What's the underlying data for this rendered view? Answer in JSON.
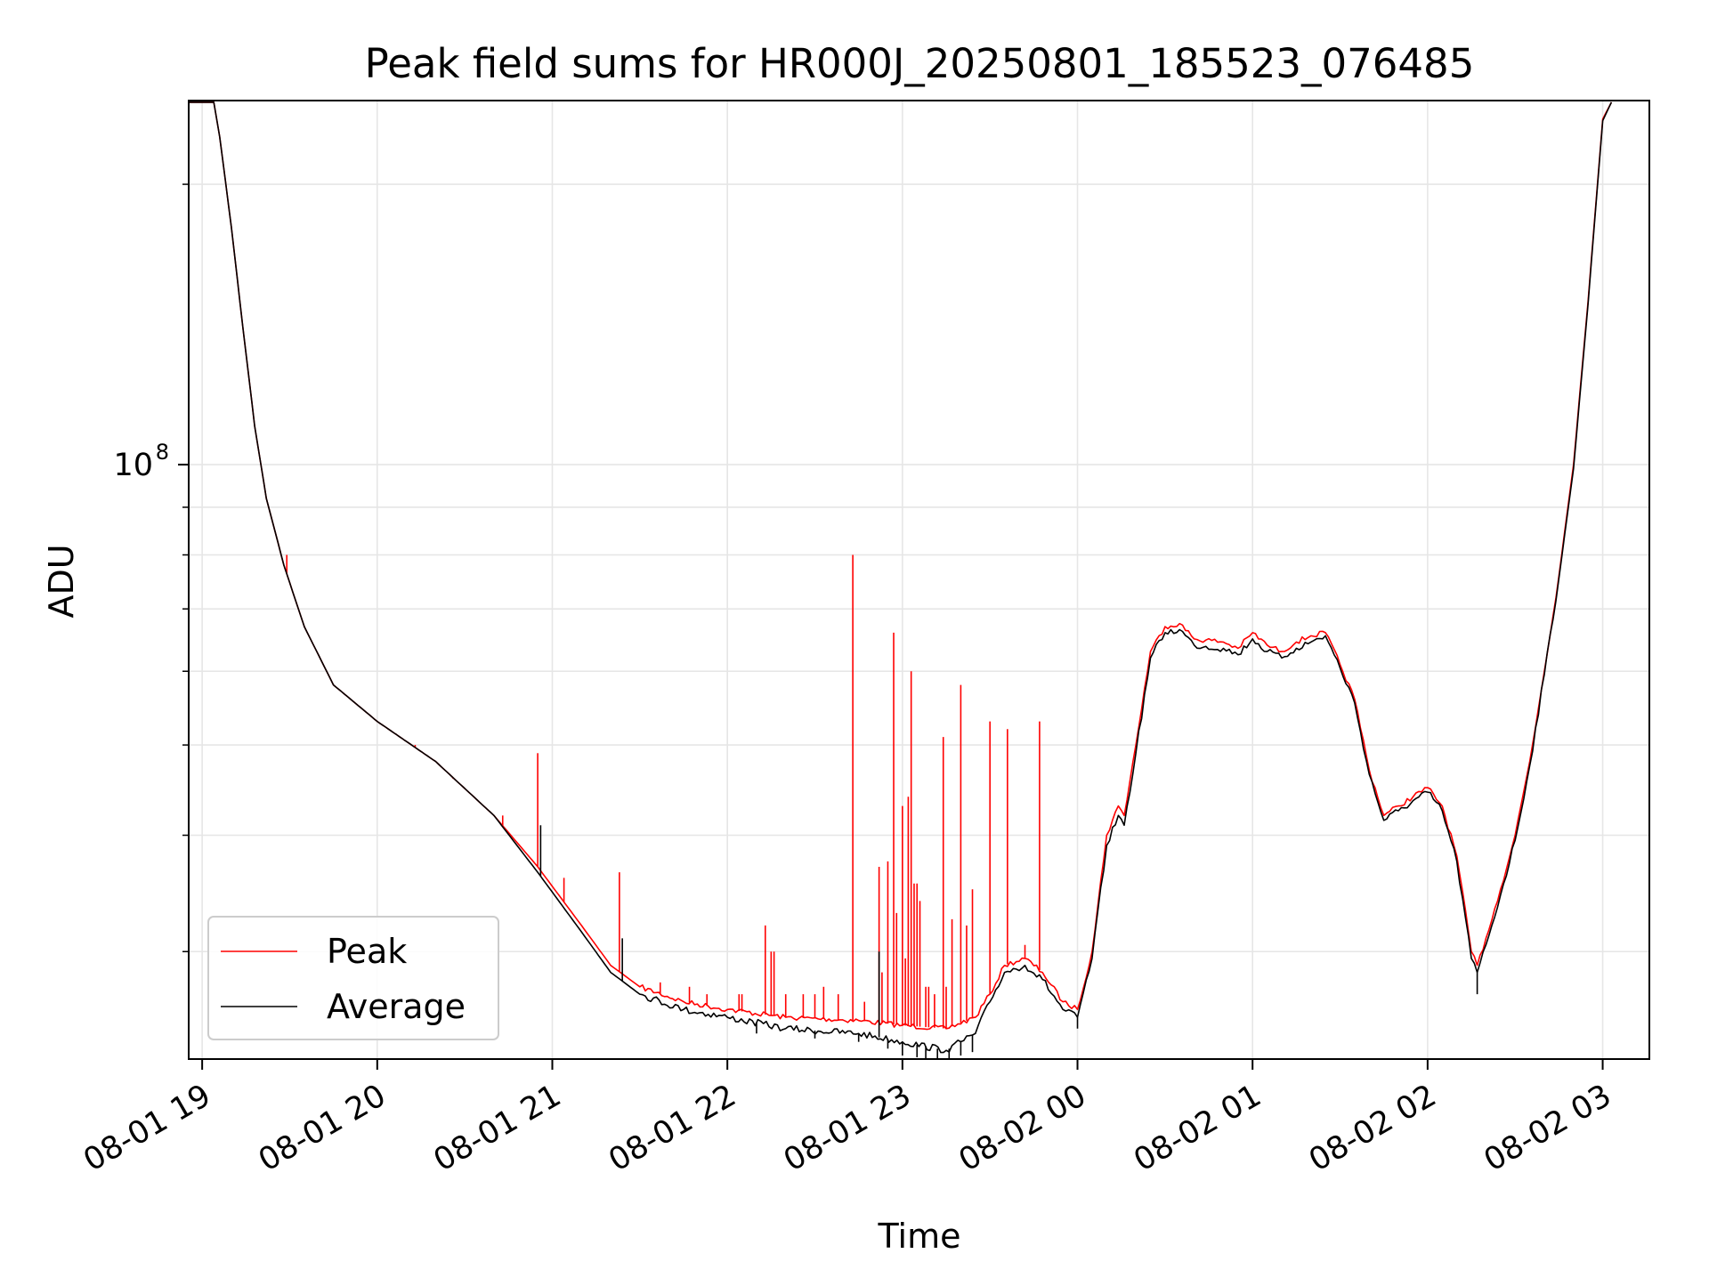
{
  "chart_data": {
    "type": "line",
    "title": "Peak field sums for HR000J_20250801_185523_076485",
    "xlabel": "Time",
    "ylabel": "ADU",
    "yscale": "log",
    "ylim": [
      23000000,
      246000000
    ],
    "xlim": [
      "2025-08-01 18:55:23",
      "2025-08-02 03:16:00"
    ],
    "x_ticks": [
      {
        "time": "2025-08-01 19:00",
        "label": "08-01 19"
      },
      {
        "time": "2025-08-01 20:00",
        "label": "08-01 20"
      },
      {
        "time": "2025-08-01 21:00",
        "label": "08-01 21"
      },
      {
        "time": "2025-08-01 22:00",
        "label": "08-01 22"
      },
      {
        "time": "2025-08-01 23:00",
        "label": "08-01 23"
      },
      {
        "time": "2025-08-02 00:00",
        "label": "08-02 00"
      },
      {
        "time": "2025-08-02 01:00",
        "label": "08-02 01"
      },
      {
        "time": "2025-08-02 02:00",
        "label": "08-02 02"
      },
      {
        "time": "2025-08-02 03:00",
        "label": "08-02 03"
      }
    ],
    "y_major_ticks": [
      {
        "value": 100000000,
        "label_base": "10",
        "label_exp": "8"
      }
    ],
    "y_minor_ticks": [
      30000000,
      40000000,
      50000000,
      60000000,
      70000000,
      80000000,
      90000000,
      200000000
    ],
    "grid": true,
    "legend_position": "lower-left",
    "series": [
      {
        "name": "Peak",
        "color": "#ff0000",
        "points": [
          [
            "2025-08-01 18:55:23",
            245000000
          ],
          [
            "2025-08-01 19:04:00",
            245000000
          ],
          [
            "2025-08-01 19:06:00",
            225000000
          ],
          [
            "2025-08-01 19:10:00",
            180000000
          ],
          [
            "2025-08-01 19:14:00",
            140000000
          ],
          [
            "2025-08-01 19:18:00",
            110000000
          ],
          [
            "2025-08-01 19:22:00",
            92000000
          ],
          [
            "2025-08-01 19:28:00",
            78000000
          ],
          [
            "2025-08-01 19:35:00",
            67000000
          ],
          [
            "2025-08-01 19:45:00",
            58000000
          ],
          [
            "2025-08-01 20:00:00",
            53000000
          ],
          [
            "2025-08-01 20:20:00",
            48000000
          ],
          [
            "2025-08-01 20:40:00",
            42000000
          ],
          [
            "2025-08-01 20:55:00",
            37000000
          ],
          [
            "2025-08-01 21:10:00",
            32000000
          ],
          [
            "2025-08-01 21:20:00",
            29000000
          ],
          [
            "2025-08-01 21:30:00",
            27500000
          ],
          [
            "2025-08-01 21:45:00",
            26500000
          ],
          [
            "2025-08-01 22:00:00",
            26000000
          ],
          [
            "2025-08-01 22:20:00",
            25500000
          ],
          [
            "2025-08-01 22:45:00",
            25300000
          ],
          [
            "2025-08-01 23:00:00",
            25000000
          ],
          [
            "2025-08-01 23:15:00",
            24800000
          ],
          [
            "2025-08-01 23:25:00",
            25500000
          ],
          [
            "2025-08-01 23:30:00",
            27000000
          ],
          [
            "2025-08-01 23:35:00",
            29000000
          ],
          [
            "2025-08-01 23:42:00",
            29500000
          ],
          [
            "2025-08-01 23:48:00",
            28500000
          ],
          [
            "2025-08-01 23:55:00",
            26500000
          ],
          [
            "2025-08-02 00:00:00",
            26000000
          ],
          [
            "2025-08-02 00:05:00",
            30000000
          ],
          [
            "2025-08-02 00:10:00",
            40000000
          ],
          [
            "2025-08-02 00:14:00",
            43000000
          ],
          [
            "2025-08-02 00:16:00",
            42000000
          ],
          [
            "2025-08-02 00:20:00",
            50000000
          ],
          [
            "2025-08-02 00:25:00",
            63000000
          ],
          [
            "2025-08-02 00:30:00",
            67000000
          ],
          [
            "2025-08-02 00:35:00",
            67500000
          ],
          [
            "2025-08-02 00:40:00",
            65000000
          ],
          [
            "2025-08-02 00:50:00",
            64500000
          ],
          [
            "2025-08-02 00:55:00",
            63500000
          ],
          [
            "2025-08-02 01:00:00",
            66000000
          ],
          [
            "2025-08-02 01:05:00",
            64000000
          ],
          [
            "2025-08-02 01:10:00",
            63000000
          ],
          [
            "2025-08-02 01:15:00",
            64500000
          ],
          [
            "2025-08-02 01:20:00",
            65500000
          ],
          [
            "2025-08-02 01:25:00",
            66000000
          ],
          [
            "2025-08-02 01:30:00",
            61000000
          ],
          [
            "2025-08-02 01:35:00",
            56000000
          ],
          [
            "2025-08-02 01:40:00",
            47000000
          ],
          [
            "2025-08-02 01:45:00",
            42000000
          ],
          [
            "2025-08-02 01:50:00",
            43000000
          ],
          [
            "2025-08-02 02:00:00",
            45000000
          ],
          [
            "2025-08-02 02:05:00",
            43000000
          ],
          [
            "2025-08-02 02:10:00",
            38000000
          ],
          [
            "2025-08-02 02:15:00",
            30000000
          ],
          [
            "2025-08-02 02:17:00",
            29000000
          ],
          [
            "2025-08-02 02:20:00",
            31000000
          ],
          [
            "2025-08-02 02:25:00",
            35000000
          ],
          [
            "2025-08-02 02:30:00",
            40000000
          ],
          [
            "2025-08-02 02:35:00",
            48000000
          ],
          [
            "2025-08-02 02:40:00",
            60000000
          ],
          [
            "2025-08-02 02:45:00",
            76000000
          ],
          [
            "2025-08-02 02:50:00",
            100000000
          ],
          [
            "2025-08-02 02:55:00",
            150000000
          ],
          [
            "2025-08-02 03:00:00",
            235000000
          ],
          [
            "2025-08-02 03:03:00",
            245000000
          ]
        ]
      },
      {
        "name": "Average",
        "color": "#000000",
        "points": [
          [
            "2025-08-01 18:55:23",
            245000000
          ],
          [
            "2025-08-01 19:04:00",
            245000000
          ],
          [
            "2025-08-01 19:06:00",
            225000000
          ],
          [
            "2025-08-01 19:10:00",
            180000000
          ],
          [
            "2025-08-01 19:14:00",
            140000000
          ],
          [
            "2025-08-01 19:18:00",
            110000000
          ],
          [
            "2025-08-01 19:22:00",
            92000000
          ],
          [
            "2025-08-01 19:28:00",
            78000000
          ],
          [
            "2025-08-01 19:35:00",
            67000000
          ],
          [
            "2025-08-01 19:45:00",
            58000000
          ],
          [
            "2025-08-01 20:00:00",
            53000000
          ],
          [
            "2025-08-01 20:20:00",
            48000000
          ],
          [
            "2025-08-01 20:40:00",
            42000000
          ],
          [
            "2025-08-01 20:55:00",
            36500000
          ],
          [
            "2025-08-01 21:10:00",
            31500000
          ],
          [
            "2025-08-01 21:20:00",
            28500000
          ],
          [
            "2025-08-01 21:30:00",
            27000000
          ],
          [
            "2025-08-01 21:45:00",
            26000000
          ],
          [
            "2025-08-01 22:00:00",
            25500000
          ],
          [
            "2025-08-01 22:20:00",
            24800000
          ],
          [
            "2025-08-01 22:45:00",
            24500000
          ],
          [
            "2025-08-01 23:00:00",
            24000000
          ],
          [
            "2025-08-01 23:15:00",
            23500000
          ],
          [
            "2025-08-01 23:25:00",
            24500000
          ],
          [
            "2025-08-01 23:30:00",
            26500000
          ],
          [
            "2025-08-01 23:35:00",
            28500000
          ],
          [
            "2025-08-01 23:42:00",
            29000000
          ],
          [
            "2025-08-01 23:48:00",
            28000000
          ],
          [
            "2025-08-01 23:55:00",
            26000000
          ],
          [
            "2025-08-02 00:00:00",
            25500000
          ],
          [
            "2025-08-02 00:05:00",
            29500000
          ],
          [
            "2025-08-02 00:10:00",
            39000000
          ],
          [
            "2025-08-02 00:14:00",
            42000000
          ],
          [
            "2025-08-02 00:16:00",
            41000000
          ],
          [
            "2025-08-02 00:20:00",
            49000000
          ],
          [
            "2025-08-02 00:25:00",
            62000000
          ],
          [
            "2025-08-02 00:30:00",
            66000000
          ],
          [
            "2025-08-02 00:35:00",
            66500000
          ],
          [
            "2025-08-02 00:40:00",
            64000000
          ],
          [
            "2025-08-02 00:50:00",
            63500000
          ],
          [
            "2025-08-02 00:55:00",
            62500000
          ],
          [
            "2025-08-02 01:00:00",
            65000000
          ],
          [
            "2025-08-02 01:05:00",
            63000000
          ],
          [
            "2025-08-02 01:10:00",
            62000000
          ],
          [
            "2025-08-02 01:15:00",
            63500000
          ],
          [
            "2025-08-02 01:20:00",
            64500000
          ],
          [
            "2025-08-02 01:25:00",
            65500000
          ],
          [
            "2025-08-02 01:30:00",
            60500000
          ],
          [
            "2025-08-02 01:35:00",
            55500000
          ],
          [
            "2025-08-02 01:40:00",
            46500000
          ],
          [
            "2025-08-02 01:45:00",
            41500000
          ],
          [
            "2025-08-02 01:50:00",
            42500000
          ],
          [
            "2025-08-02 02:00:00",
            44500000
          ],
          [
            "2025-08-02 02:05:00",
            42500000
          ],
          [
            "2025-08-02 02:10:00",
            37500000
          ],
          [
            "2025-08-02 02:15:00",
            29500000
          ],
          [
            "2025-08-02 02:17:00",
            28500000
          ],
          [
            "2025-08-02 02:20:00",
            30500000
          ],
          [
            "2025-08-02 02:25:00",
            34500000
          ],
          [
            "2025-08-02 02:30:00",
            39500000
          ],
          [
            "2025-08-02 02:35:00",
            47500000
          ],
          [
            "2025-08-02 02:40:00",
            59500000
          ],
          [
            "2025-08-02 02:45:00",
            75500000
          ],
          [
            "2025-08-02 02:50:00",
            99000000
          ],
          [
            "2025-08-02 02:55:00",
            149000000
          ],
          [
            "2025-08-02 03:00:00",
            234000000
          ],
          [
            "2025-08-02 03:03:00",
            245000000
          ]
        ]
      }
    ],
    "peak_spikes": [
      [
        "2025-08-01 19:29:00",
        80000000
      ],
      [
        "2025-08-01 19:57:00",
        54000000
      ],
      [
        "2025-08-01 20:13:00",
        50000000
      ],
      [
        "2025-08-01 20:18:00",
        48500000
      ],
      [
        "2025-08-01 20:26:00",
        46000000
      ],
      [
        "2025-08-01 20:43:00",
        42000000
      ],
      [
        "2025-08-01 20:55:00",
        49000000
      ],
      [
        "2025-08-01 21:04:00",
        36000000
      ],
      [
        "2025-08-01 21:23:00",
        36500000
      ],
      [
        "2025-08-01 21:37:00",
        27800000
      ],
      [
        "2025-08-01 21:47:00",
        27500000
      ],
      [
        "2025-08-01 21:53:00",
        27000000
      ],
      [
        "2025-08-01 22:04:00",
        27000000
      ],
      [
        "2025-08-01 22:05:00",
        27000000
      ],
      [
        "2025-08-01 22:13:00",
        32000000
      ],
      [
        "2025-08-01 22:15:00",
        30000000
      ],
      [
        "2025-08-01 22:16:00",
        30000000
      ],
      [
        "2025-08-01 22:20:00",
        27000000
      ],
      [
        "2025-08-01 22:26:00",
        27000000
      ],
      [
        "2025-08-01 22:30:00",
        27000000
      ],
      [
        "2025-08-01 22:33:00",
        27500000
      ],
      [
        "2025-08-01 22:38:00",
        27000000
      ],
      [
        "2025-08-01 22:43:00",
        80000000
      ],
      [
        "2025-08-01 22:47:00",
        26500000
      ],
      [
        "2025-08-01 22:52:00",
        37000000
      ],
      [
        "2025-08-01 22:53:00",
        28500000
      ],
      [
        "2025-08-01 22:55:00",
        37500000
      ],
      [
        "2025-08-01 22:57:00",
        66000000
      ],
      [
        "2025-08-01 22:58:00",
        33000000
      ],
      [
        "2025-08-01 23:00:00",
        43000000
      ],
      [
        "2025-08-01 23:01:00",
        29500000
      ],
      [
        "2025-08-01 23:02:00",
        44000000
      ],
      [
        "2025-08-01 23:03:00",
        60000000
      ],
      [
        "2025-08-01 23:04:00",
        35500000
      ],
      [
        "2025-08-01 23:05:00",
        35500000
      ],
      [
        "2025-08-01 23:06:00",
        34000000
      ],
      [
        "2025-08-01 23:08:00",
        27500000
      ],
      [
        "2025-08-01 23:09:00",
        27500000
      ],
      [
        "2025-08-01 23:11:00",
        27000000
      ],
      [
        "2025-08-01 23:14:00",
        51000000
      ],
      [
        "2025-08-01 23:15:00",
        27500000
      ],
      [
        "2025-08-01 23:17:00",
        32500000
      ],
      [
        "2025-08-01 23:20:00",
        58000000
      ],
      [
        "2025-08-01 23:22:00",
        32000000
      ],
      [
        "2025-08-01 23:24:00",
        35000000
      ],
      [
        "2025-08-01 23:30:00",
        53000000
      ],
      [
        "2025-08-01 23:36:00",
        52000000
      ],
      [
        "2025-08-01 23:42:00",
        30500000
      ],
      [
        "2025-08-01 23:47:00",
        53000000
      ]
    ],
    "average_spikes": [
      [
        "2025-08-01 20:56:00",
        41000000
      ],
      [
        "2025-08-01 21:24:00",
        31000000
      ],
      [
        "2025-08-01 22:52:00",
        30000000
      ]
    ],
    "average_dips": [
      [
        "2025-08-01 22:10:00",
        24500000
      ],
      [
        "2025-08-01 22:30:00",
        24200000
      ],
      [
        "2025-08-01 22:45:00",
        24000000
      ],
      [
        "2025-08-01 22:55:00",
        23600000
      ],
      [
        "2025-08-01 23:00:00",
        23200000
      ],
      [
        "2025-08-01 23:05:00",
        23100000
      ],
      [
        "2025-08-01 23:08:00",
        23000000
      ],
      [
        "2025-08-01 23:12:00",
        23000000
      ],
      [
        "2025-08-01 23:16:00",
        23000000
      ],
      [
        "2025-08-01 23:20:00",
        23200000
      ],
      [
        "2025-08-01 23:24:00",
        23400000
      ],
      [
        "2025-08-02 00:00:00",
        24800000
      ],
      [
        "2025-08-02 02:17:00",
        27000000
      ]
    ]
  }
}
